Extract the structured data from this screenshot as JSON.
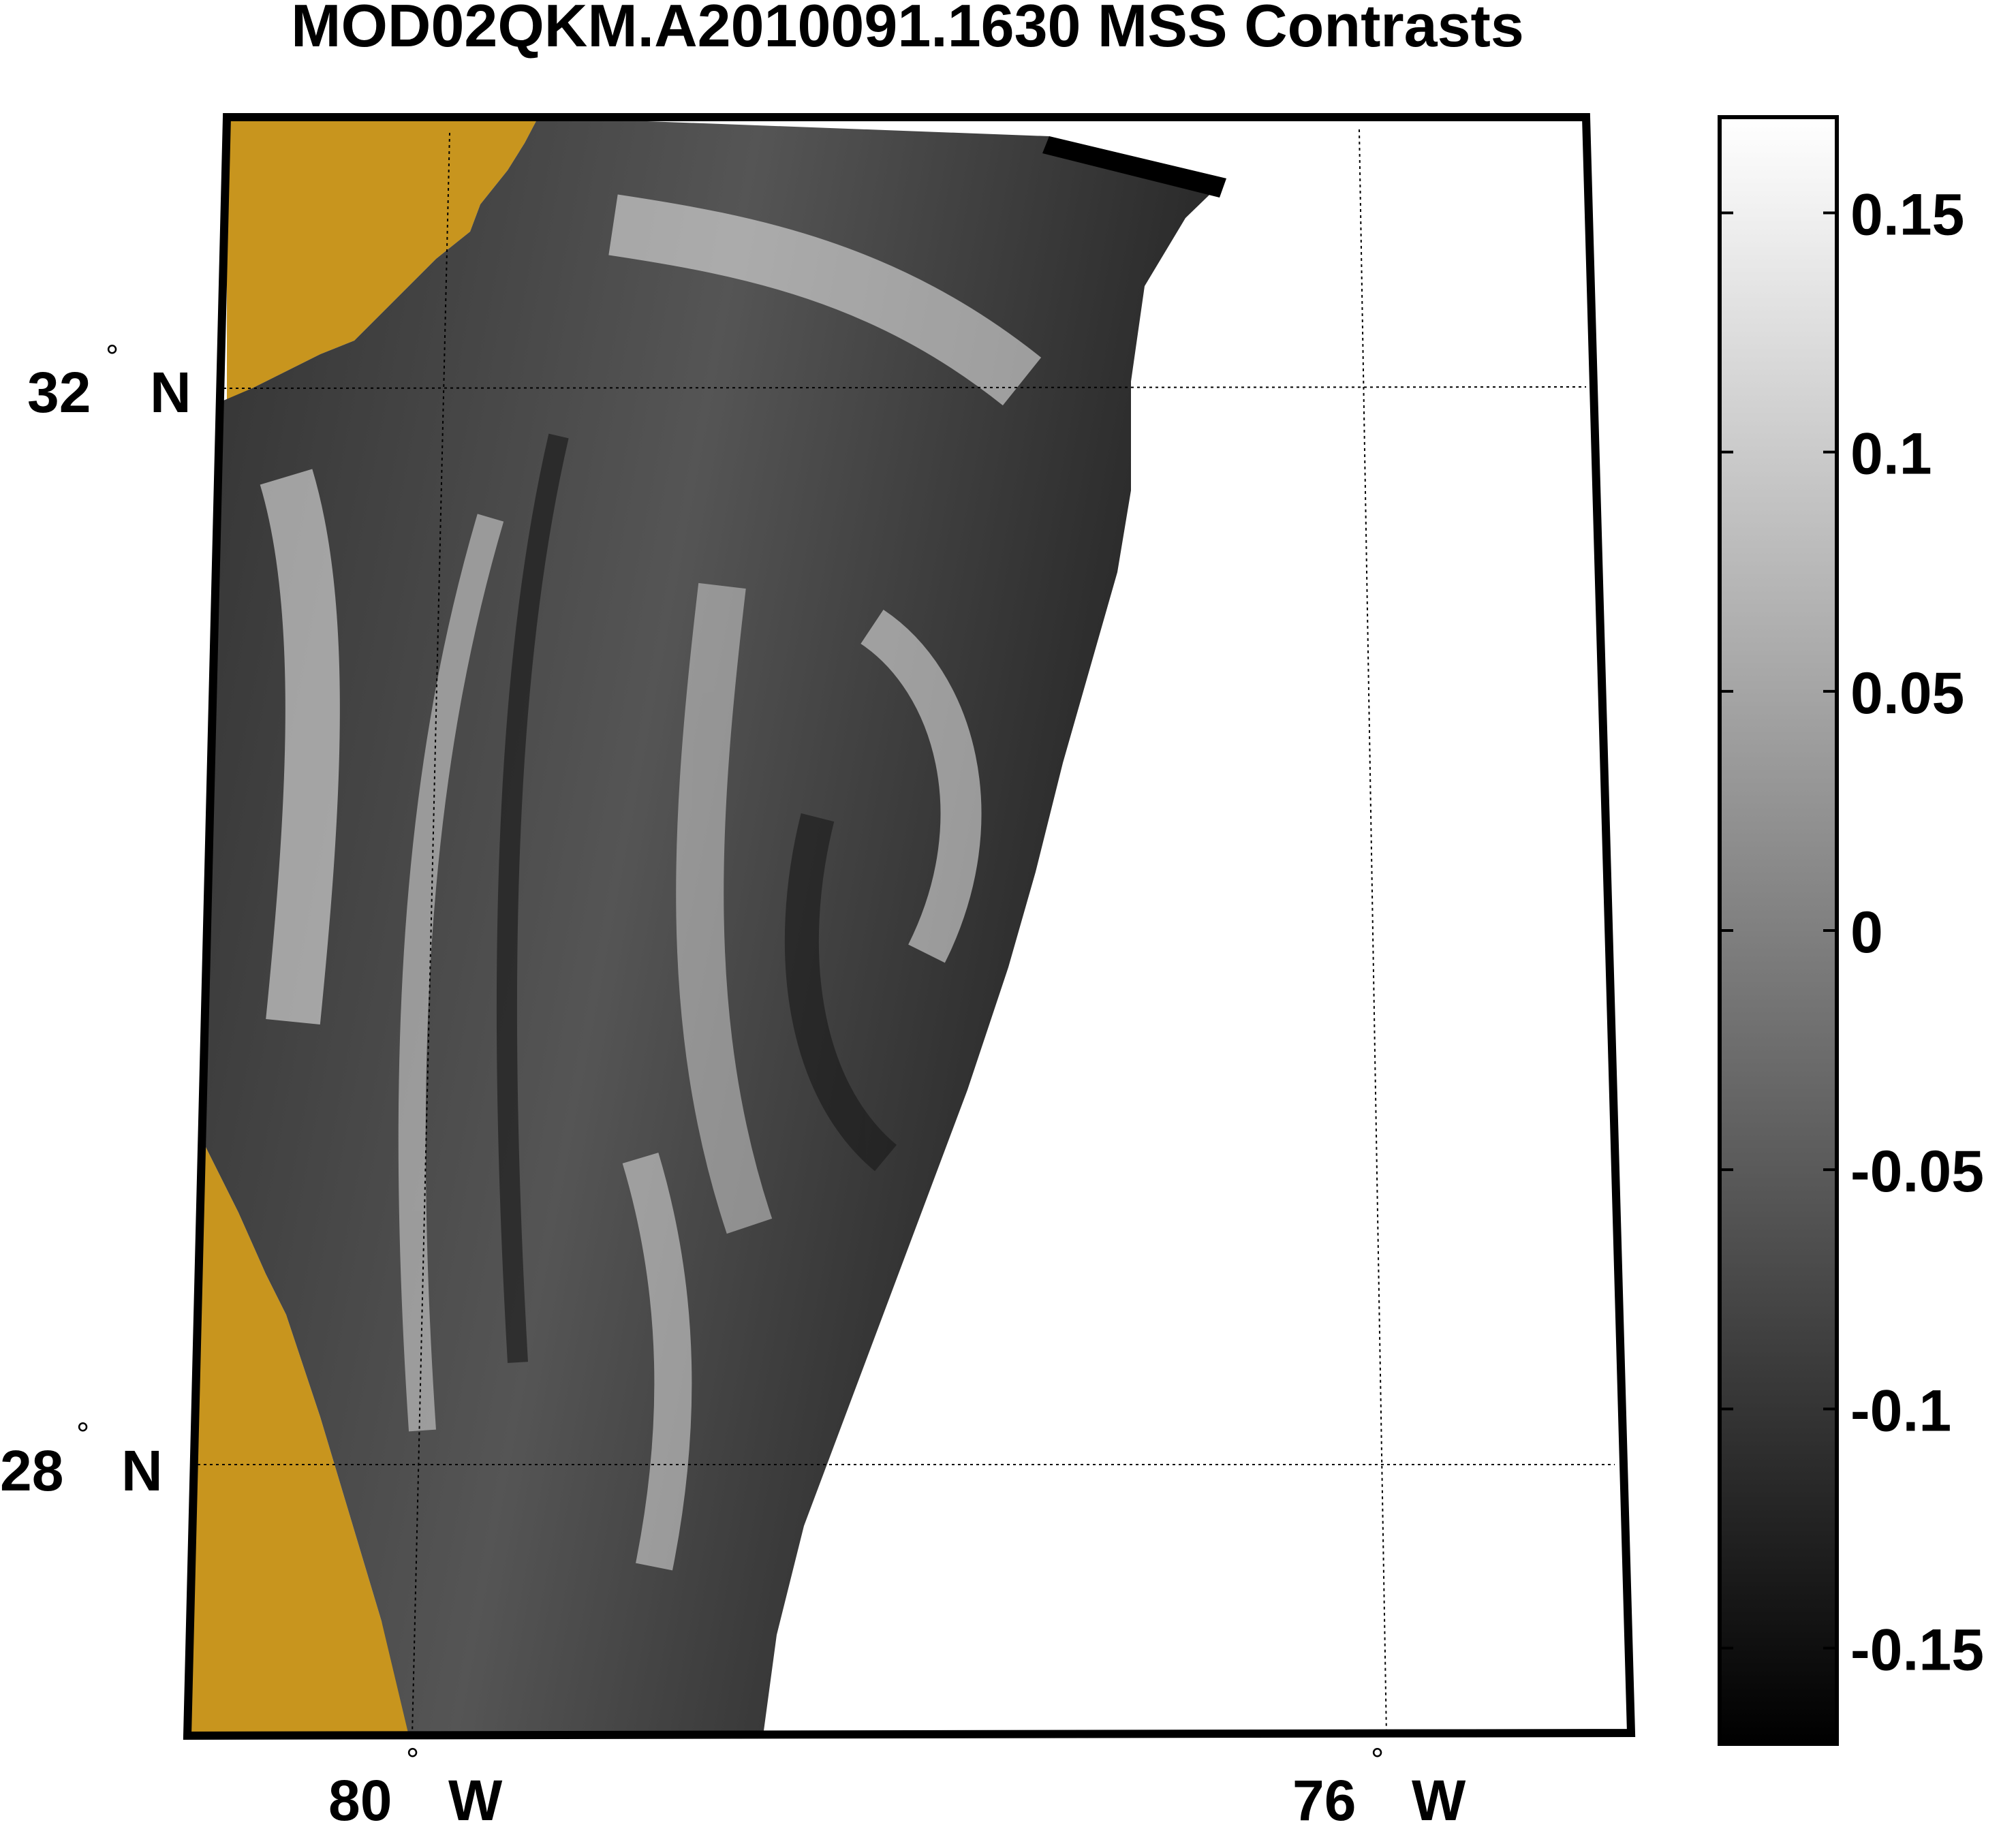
{
  "figure": {
    "title": "MOD02QKM.A2010091.1630 MSS Contrasts"
  },
  "map": {
    "land_color": "#C8951E",
    "swath_color": "#000000",
    "no_data_color": "#ffffff",
    "latitude_labels": [
      {
        "value": "32",
        "degree_symbol": "°",
        "hemisphere": "N"
      },
      {
        "value": "28",
        "degree_symbol": "°",
        "hemisphere": "N"
      }
    ],
    "longitude_labels": [
      {
        "value": "80",
        "degree_symbol": "°",
        "hemisphere": "W"
      },
      {
        "value": "76",
        "degree_symbol": "°",
        "hemisphere": "W"
      }
    ]
  },
  "colorbar": {
    "colormap": "gray",
    "range": [
      -0.17,
      0.17
    ],
    "ticks": [
      {
        "value": 0.15,
        "label": "0.15"
      },
      {
        "value": 0.1,
        "label": "0.1"
      },
      {
        "value": 0.05,
        "label": "0.05"
      },
      {
        "value": 0,
        "label": "0"
      },
      {
        "value": -0.05,
        "label": "-0.05"
      },
      {
        "value": -0.1,
        "label": "-0.1"
      },
      {
        "value": -0.15,
        "label": "-0.15"
      }
    ]
  }
}
